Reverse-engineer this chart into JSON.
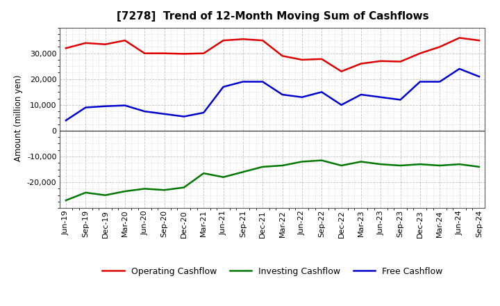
{
  "title": "[7278]  Trend of 12-Month Moving Sum of Cashflows",
  "ylabel": "Amount (million yen)",
  "background_color": "#ffffff",
  "plot_background": "#ffffff",
  "grid_color": "#888888",
  "labels": [
    "Jun-19",
    "Sep-19",
    "Dec-19",
    "Mar-20",
    "Jun-20",
    "Sep-20",
    "Dec-20",
    "Mar-21",
    "Jun-21",
    "Sep-21",
    "Dec-21",
    "Mar-22",
    "Jun-22",
    "Sep-22",
    "Dec-22",
    "Mar-23",
    "Jun-23",
    "Sep-23",
    "Dec-23",
    "Mar-24",
    "Jun-24",
    "Sep-24"
  ],
  "operating": [
    32000,
    34000,
    33500,
    35000,
    30000,
    30000,
    29800,
    30000,
    35000,
    35500,
    35000,
    29000,
    27500,
    27800,
    23000,
    26000,
    27000,
    26800,
    30000,
    32500,
    36000,
    35000
  ],
  "investing": [
    -27000,
    -24000,
    -25000,
    -23500,
    -22500,
    -23000,
    -22000,
    -16500,
    -18000,
    -16000,
    -14000,
    -13500,
    -12000,
    -11500,
    -13500,
    -12000,
    -13000,
    -13500,
    -13000,
    -13500,
    -13000,
    -14000
  ],
  "free": [
    4000,
    9000,
    9500,
    9800,
    7500,
    6500,
    5500,
    7000,
    17000,
    19000,
    19000,
    14000,
    13000,
    15000,
    10000,
    14000,
    13000,
    12000,
    19000,
    19000,
    24000,
    21000
  ],
  "operating_color": "#dd0000",
  "investing_color": "#007700",
  "free_color": "#0000cc",
  "ylim": [
    -30000,
    40000
  ],
  "yticks": [
    -20000,
    -10000,
    0,
    10000,
    20000,
    30000
  ],
  "line_width": 1.8,
  "legend_labels": [
    "Operating Cashflow",
    "Investing Cashflow",
    "Free Cashflow"
  ],
  "title_fontsize": 11,
  "ylabel_fontsize": 8.5,
  "tick_fontsize": 8,
  "legend_fontsize": 9
}
